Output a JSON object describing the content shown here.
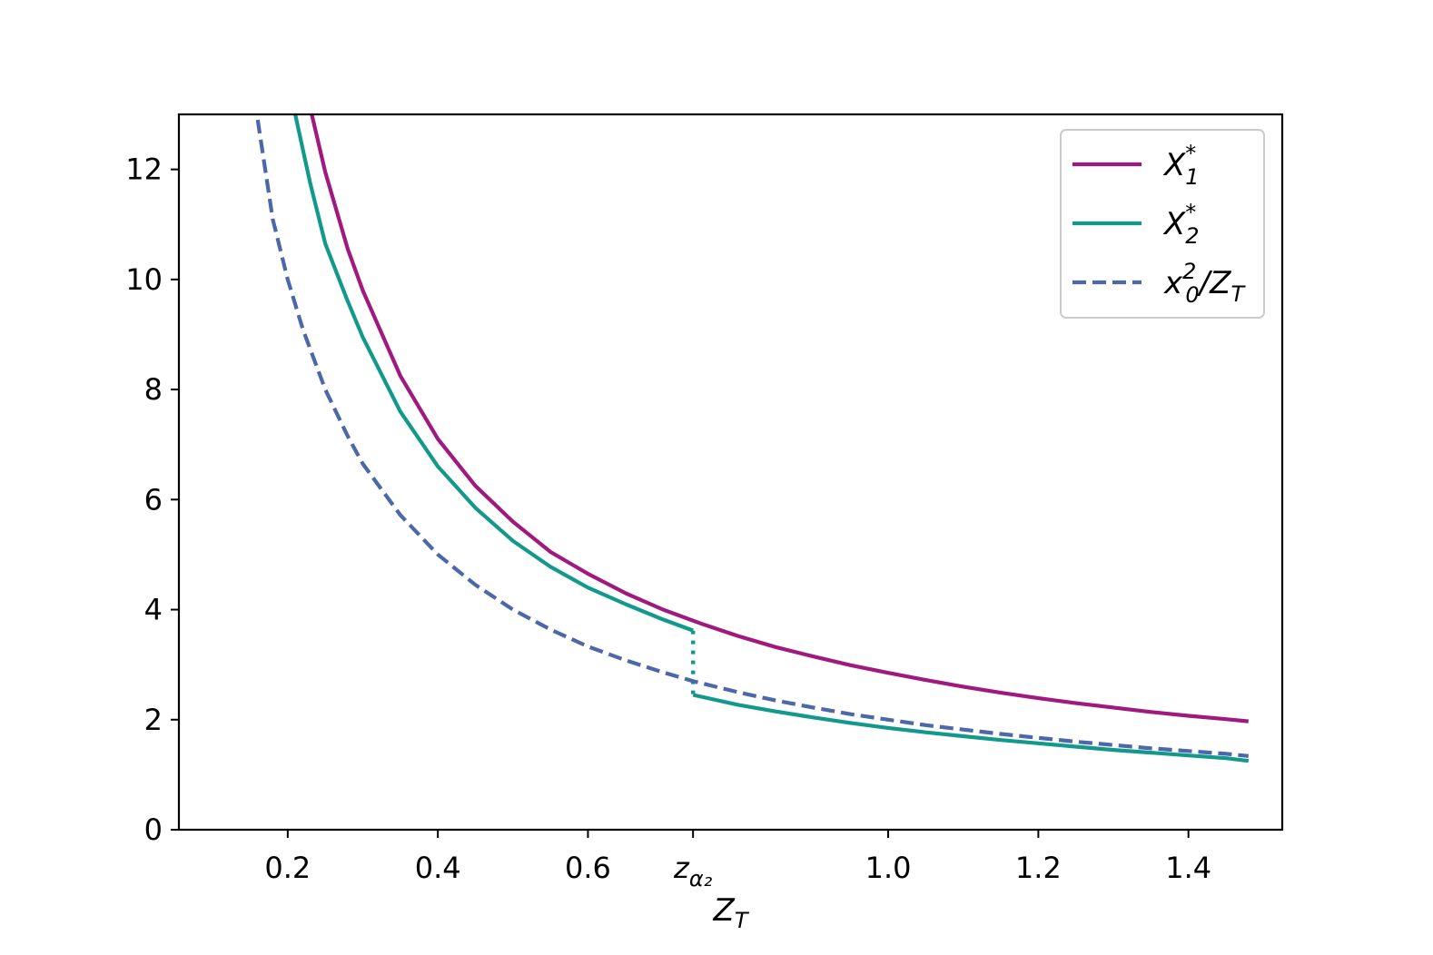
{
  "chart_data": {
    "type": "line",
    "title": "",
    "xlabel_main": "Z",
    "xlabel_sub": "T",
    "ylabel": "",
    "xlim": [
      0.055,
      1.525
    ],
    "ylim": [
      0,
      13
    ],
    "x_ticks": [
      {
        "value": 0.2,
        "label": "0.2"
      },
      {
        "value": 0.4,
        "label": "0.4"
      },
      {
        "value": 0.6,
        "label": "0.6"
      },
      {
        "value": 0.74,
        "label": "z",
        "sub": "α₂"
      },
      {
        "value": 1.0,
        "label": "1.0"
      },
      {
        "value": 1.2,
        "label": "1.2"
      },
      {
        "value": 1.4,
        "label": "1.4"
      }
    ],
    "y_ticks": [
      {
        "value": 0,
        "label": "0"
      },
      {
        "value": 2,
        "label": "2"
      },
      {
        "value": 4,
        "label": "4"
      },
      {
        "value": 6,
        "label": "6"
      },
      {
        "value": 8,
        "label": "8"
      },
      {
        "value": 10,
        "label": "10"
      },
      {
        "value": 12,
        "label": "12"
      }
    ],
    "legend_position": "top-right",
    "grid": false,
    "series": [
      {
        "name": "X",
        "name_sub": "1",
        "name_sup": "*",
        "color": "#a0197f",
        "style": "solid",
        "points": [
          [
            0.232,
            13.0
          ],
          [
            0.25,
            11.95
          ],
          [
            0.28,
            10.55
          ],
          [
            0.3,
            9.8
          ],
          [
            0.35,
            8.25
          ],
          [
            0.4,
            7.1
          ],
          [
            0.45,
            6.25
          ],
          [
            0.5,
            5.6
          ],
          [
            0.55,
            5.05
          ],
          [
            0.6,
            4.65
          ],
          [
            0.65,
            4.3
          ],
          [
            0.7,
            4.0
          ],
          [
            0.75,
            3.75
          ],
          [
            0.8,
            3.52
          ],
          [
            0.85,
            3.32
          ],
          [
            0.9,
            3.15
          ],
          [
            0.95,
            2.99
          ],
          [
            1.0,
            2.85
          ],
          [
            1.05,
            2.72
          ],
          [
            1.1,
            2.6
          ],
          [
            1.15,
            2.49
          ],
          [
            1.2,
            2.39
          ],
          [
            1.25,
            2.3
          ],
          [
            1.3,
            2.22
          ],
          [
            1.35,
            2.14
          ],
          [
            1.4,
            2.07
          ],
          [
            1.45,
            2.01
          ],
          [
            1.48,
            1.97
          ]
        ]
      },
      {
        "name": "X",
        "name_sub": "2",
        "name_sup": "*",
        "color": "#12998c",
        "style": "solid",
        "points": [
          [
            0.21,
            13.0
          ],
          [
            0.23,
            11.75
          ],
          [
            0.25,
            10.65
          ],
          [
            0.28,
            9.6
          ],
          [
            0.3,
            8.95
          ],
          [
            0.35,
            7.6
          ],
          [
            0.4,
            6.6
          ],
          [
            0.45,
            5.85
          ],
          [
            0.5,
            5.25
          ],
          [
            0.55,
            4.78
          ],
          [
            0.6,
            4.4
          ],
          [
            0.65,
            4.1
          ],
          [
            0.7,
            3.82
          ],
          [
            0.74,
            3.62
          ]
        ]
      },
      {
        "name": "",
        "color": "#12998c",
        "style": "solid",
        "points": [
          [
            0.74,
            2.45
          ],
          [
            0.8,
            2.27
          ],
          [
            0.85,
            2.15
          ],
          [
            0.9,
            2.04
          ],
          [
            0.95,
            1.94
          ],
          [
            1.0,
            1.85
          ],
          [
            1.05,
            1.77
          ],
          [
            1.1,
            1.7
          ],
          [
            1.15,
            1.63
          ],
          [
            1.2,
            1.57
          ],
          [
            1.25,
            1.51
          ],
          [
            1.3,
            1.45
          ],
          [
            1.35,
            1.4
          ],
          [
            1.4,
            1.35
          ],
          [
            1.45,
            1.3
          ],
          [
            1.48,
            1.25
          ]
        ]
      },
      {
        "name": "",
        "color": "#12998c",
        "style": "dotted",
        "points": [
          [
            0.74,
            3.62
          ],
          [
            0.74,
            2.45
          ]
        ]
      },
      {
        "name": "x",
        "name_sub": "0",
        "name_sup": "2",
        "name_suffix": "/Z",
        "name_suffix_sub": "T",
        "color": "#4c68a9",
        "style": "dashed",
        "points": [
          [
            0.16,
            12.9
          ],
          [
            0.18,
            11.1
          ],
          [
            0.2,
            10.0
          ],
          [
            0.22,
            9.1
          ],
          [
            0.25,
            8.0
          ],
          [
            0.28,
            7.15
          ],
          [
            0.3,
            6.65
          ],
          [
            0.35,
            5.72
          ],
          [
            0.4,
            5.0
          ],
          [
            0.45,
            4.45
          ],
          [
            0.5,
            4.0
          ],
          [
            0.55,
            3.64
          ],
          [
            0.6,
            3.33
          ],
          [
            0.65,
            3.08
          ],
          [
            0.7,
            2.86
          ],
          [
            0.74,
            2.7
          ],
          [
            0.8,
            2.5
          ],
          [
            0.85,
            2.35
          ],
          [
            0.9,
            2.22
          ],
          [
            0.95,
            2.1
          ],
          [
            1.0,
            2.0
          ],
          [
            1.05,
            1.9
          ],
          [
            1.1,
            1.82
          ],
          [
            1.15,
            1.74
          ],
          [
            1.2,
            1.67
          ],
          [
            1.25,
            1.6
          ],
          [
            1.3,
            1.54
          ],
          [
            1.35,
            1.48
          ],
          [
            1.4,
            1.43
          ],
          [
            1.45,
            1.38
          ],
          [
            1.48,
            1.34
          ]
        ]
      }
    ]
  }
}
